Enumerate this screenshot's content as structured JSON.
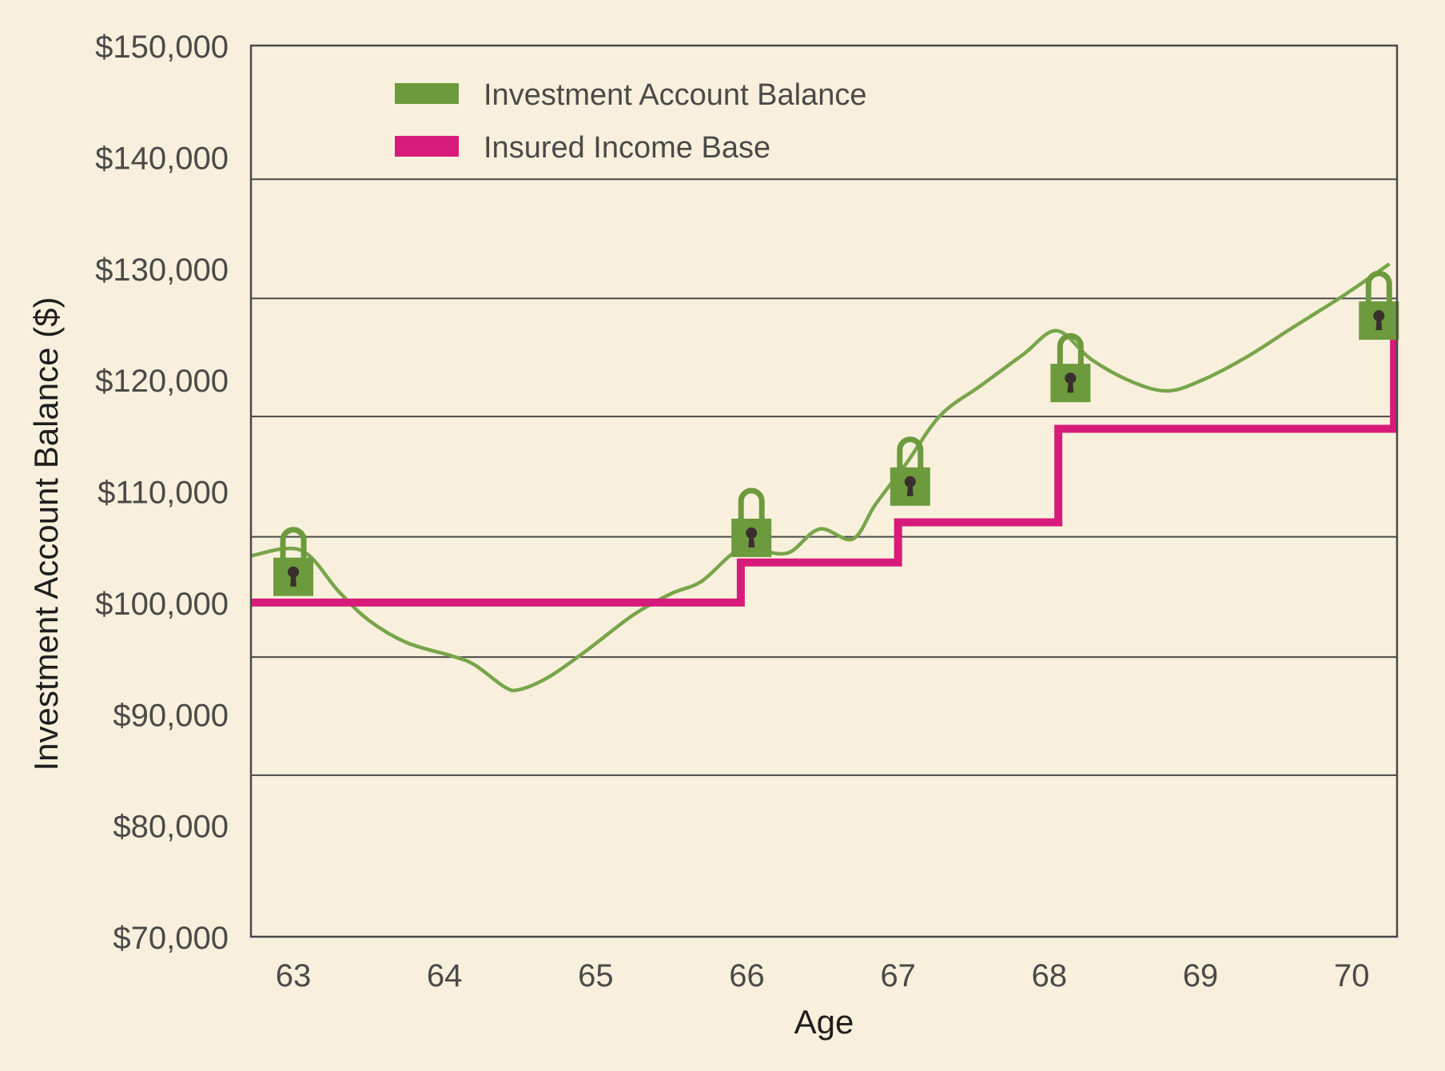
{
  "chart_data": {
    "type": "line",
    "xlabel": "Age",
    "ylabel": "Investment Account Balance ($)",
    "xlim": [
      62.72,
      70.3
    ],
    "ylim": [
      70000,
      150000
    ],
    "x_ticks": [
      {
        "value": 63,
        "label": "63"
      },
      {
        "value": 64,
        "label": "64"
      },
      {
        "value": 65,
        "label": "65"
      },
      {
        "value": 66,
        "label": "66"
      },
      {
        "value": 67,
        "label": "67"
      },
      {
        "value": 68,
        "label": "68"
      },
      {
        "value": 69,
        "label": "69"
      },
      {
        "value": 70,
        "label": "70"
      }
    ],
    "y_ticks": [
      {
        "value": 150000,
        "label": "$150,000"
      },
      {
        "value": 140000,
        "label": "$140,000"
      },
      {
        "value": 130000,
        "label": "$130,000"
      },
      {
        "value": 120000,
        "label": "$120,000"
      },
      {
        "value": 110000,
        "label": "$110,000"
      },
      {
        "value": 100000,
        "label": "$100,000"
      },
      {
        "value": 90000,
        "label": "$90,000"
      },
      {
        "value": 80000,
        "label": "$80,000"
      },
      {
        "value": 70000,
        "label": "$70,000"
      }
    ],
    "gridlines_y": [
      84500,
      95100,
      105900,
      116700,
      127300,
      138000
    ],
    "legend": {
      "placement": "top-left",
      "entries": [
        {
          "label": "Investment Account Balance",
          "color": "#6c9a3c"
        },
        {
          "label": "Insured Income Base",
          "color": "#d81b7b"
        }
      ]
    },
    "series": [
      {
        "name": "Investment Account Balance",
        "color": "#78a54b",
        "style": "smooth",
        "points": [
          [
            62.72,
            104200
          ],
          [
            63.05,
            104700
          ],
          [
            63.3,
            101000
          ],
          [
            63.5,
            98400
          ],
          [
            63.75,
            96400
          ],
          [
            64.05,
            95200
          ],
          [
            64.2,
            94400
          ],
          [
            64.4,
            92400
          ],
          [
            64.5,
            92200
          ],
          [
            64.7,
            93400
          ],
          [
            64.95,
            95800
          ],
          [
            65.25,
            98900
          ],
          [
            65.5,
            100800
          ],
          [
            65.7,
            101900
          ],
          [
            65.93,
            104600
          ],
          [
            66.1,
            104600
          ],
          [
            66.28,
            104500
          ],
          [
            66.48,
            106600
          ],
          [
            66.7,
            105700
          ],
          [
            66.85,
            108800
          ],
          [
            67.05,
            112400
          ],
          [
            67.28,
            116800
          ],
          [
            67.55,
            119500
          ],
          [
            67.83,
            122300
          ],
          [
            68.05,
            124400
          ],
          [
            68.28,
            121800
          ],
          [
            68.55,
            119800
          ],
          [
            68.78,
            119000
          ],
          [
            69.0,
            119900
          ],
          [
            69.3,
            122000
          ],
          [
            69.6,
            124600
          ],
          [
            69.95,
            127600
          ],
          [
            70.25,
            130400
          ]
        ]
      },
      {
        "name": "Insured Income Base",
        "color": "#d81b7b",
        "style": "step",
        "points": [
          [
            62.72,
            100000
          ],
          [
            65.96,
            100000
          ],
          [
            65.96,
            103600
          ],
          [
            67.0,
            103600
          ],
          [
            67.0,
            107200
          ],
          [
            68.06,
            107200
          ],
          [
            68.06,
            115600
          ],
          [
            70.28,
            115600
          ],
          [
            70.28,
            124000
          ]
        ]
      }
    ],
    "lock_markers": [
      {
        "x": 63.0,
        "y": 103600,
        "icon": "padlock-icon"
      },
      {
        "x": 66.03,
        "y": 107100,
        "icon": "padlock-icon"
      },
      {
        "x": 67.08,
        "y": 111700,
        "icon": "padlock-icon"
      },
      {
        "x": 68.14,
        "y": 121000,
        "icon": "padlock-icon"
      },
      {
        "x": 70.18,
        "y": 126600,
        "icon": "padlock-icon"
      }
    ],
    "colors": {
      "background": "#f8f0dc",
      "frame": "#4a4a4a",
      "lock": "#6c9a3c",
      "keyhole": "#3a2e2e",
      "text": "#4a4a4a"
    }
  }
}
